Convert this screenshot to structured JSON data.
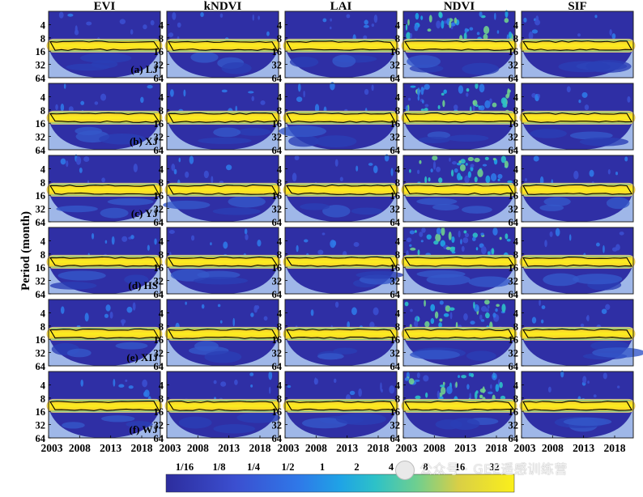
{
  "chart_data": {
    "type": "heatmap",
    "subtype": "wavelet power spectrum grid",
    "columns": [
      "EVI",
      "kNDVI",
      "LAI",
      "NDVI",
      "SIF"
    ],
    "rows": [
      {
        "panel": "(a) LJ"
      },
      {
        "panel": "(b) XJ"
      },
      {
        "panel": "(c) YJ"
      },
      {
        "panel": "(d) HS"
      },
      {
        "panel": "(e) XIJ"
      },
      {
        "panel": "(f) WJ"
      }
    ],
    "ylabel": "Period (month)",
    "y_ticks": [
      "4",
      "8",
      "16",
      "32",
      "64"
    ],
    "y_scale": "log2",
    "y_range": [
      2,
      64
    ],
    "x_ticks": [
      "2003",
      "2008",
      "2013",
      "2018"
    ],
    "x_range": [
      2003,
      2021
    ],
    "dominant_period_months": 12,
    "colorbar": {
      "tick_labels": [
        "1/16",
        "1/8",
        "1/4",
        "1/2",
        "1",
        "2",
        "4",
        "8",
        "16",
        "32"
      ],
      "colors": [
        "#2d2d9e",
        "#3b4fd0",
        "#2f78e8",
        "#1fa3e6",
        "#2dc1c8",
        "#6fcf8f",
        "#b5cf55",
        "#eec93b",
        "#f9dc27",
        "#fbef1a"
      ]
    }
  },
  "watermark": "公众号 · GEE遥感训练营"
}
